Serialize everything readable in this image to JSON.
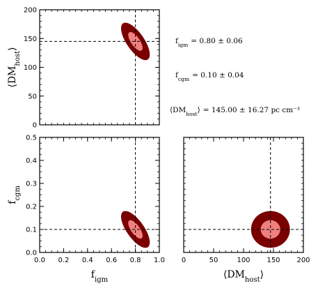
{
  "chart_data": {
    "type": "corner",
    "colors": {
      "outer": "#7a0000",
      "inner": "#f08080",
      "truth_line": "#000000"
    },
    "truth": {
      "f_igm": 0.8,
      "f_cgm": 0.1,
      "dm_host": 145.0
    },
    "stats": [
      {
        "label": "f_igm",
        "text": "= 0.80 ± 0.06"
      },
      {
        "label": "f_cgm",
        "text": "= 0.10 ± 0.04"
      },
      {
        "label": "⟨DM_host⟩",
        "text": "= 145.00 ± 16.27 pc cm⁻³"
      }
    ],
    "panels": [
      {
        "id": "f_igm-vs-dm_host",
        "xlim": [
          0,
          1.0
        ],
        "ylim": [
          0,
          200
        ],
        "xticks": [],
        "yticks": [
          "0",
          "50",
          "100",
          "150",
          "200"
        ],
        "ytick_values": [
          0,
          50,
          100,
          150,
          200
        ],
        "ylabel": "⟨DM_host⟩",
        "contour": {
          "cx": 0.8,
          "cy": 145,
          "sx": 0.06,
          "sy": 16.27,
          "rho": -0.7
        }
      },
      {
        "id": "f_igm-vs-f_cgm",
        "xlim": [
          0,
          1.0
        ],
        "ylim": [
          0,
          0.5
        ],
        "xticks": [
          "0.0",
          "0.2",
          "0.4",
          "0.6",
          "0.8",
          "1.0"
        ],
        "xtick_values": [
          0,
          0.2,
          0.4,
          0.6,
          0.8,
          1.0
        ],
        "yticks": [
          "0.0",
          "0.1",
          "0.2",
          "0.3",
          "0.4",
          "0.5"
        ],
        "ytick_values": [
          0,
          0.1,
          0.2,
          0.3,
          0.4,
          0.5
        ],
        "xlabel": "f_igm",
        "ylabel": "f_cgm",
        "contour": {
          "cx": 0.8,
          "cy": 0.1,
          "sx": 0.06,
          "sy": 0.04,
          "rho": -0.7
        }
      },
      {
        "id": "dm_host-vs-f_cgm",
        "xlim": [
          0,
          200
        ],
        "ylim": [
          0,
          0.5
        ],
        "xticks": [
          "0",
          "50",
          "100",
          "150",
          "200"
        ],
        "xtick_values": [
          0,
          50,
          100,
          150,
          200
        ],
        "yticks": [],
        "xlabel": "⟨DM_host⟩",
        "contour": {
          "cx": 145,
          "cy": 0.1,
          "sx": 16.27,
          "sy": 0.04,
          "rho": 0.0
        }
      }
    ]
  }
}
